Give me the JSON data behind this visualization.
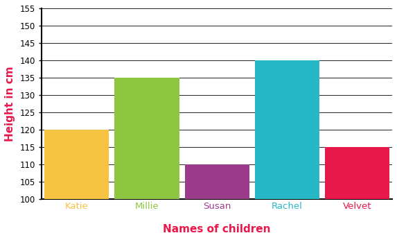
{
  "categories": [
    "Katie",
    "Millie",
    "Susan",
    "Rachel",
    "Velvet"
  ],
  "values": [
    120,
    135,
    110,
    140,
    115
  ],
  "bar_colors": [
    "#F5C242",
    "#8DC641",
    "#9B3B8A",
    "#27B8C8",
    "#E8184A"
  ],
  "xlabel": "Names of children",
  "ylabel": "Height in cm",
  "xlabel_color": "#E8184A",
  "ylabel_color": "#E8184A",
  "tick_label_colors": [
    "#F5C242",
    "#8DC641",
    "#9B3B8A",
    "#27B8C8",
    "#E8184A"
  ],
  "ylim": [
    100,
    155
  ],
  "yticks": [
    100,
    105,
    110,
    115,
    120,
    125,
    130,
    135,
    140,
    145,
    150,
    155
  ],
  "background_color": "#ffffff",
  "grid_color": "#000000"
}
